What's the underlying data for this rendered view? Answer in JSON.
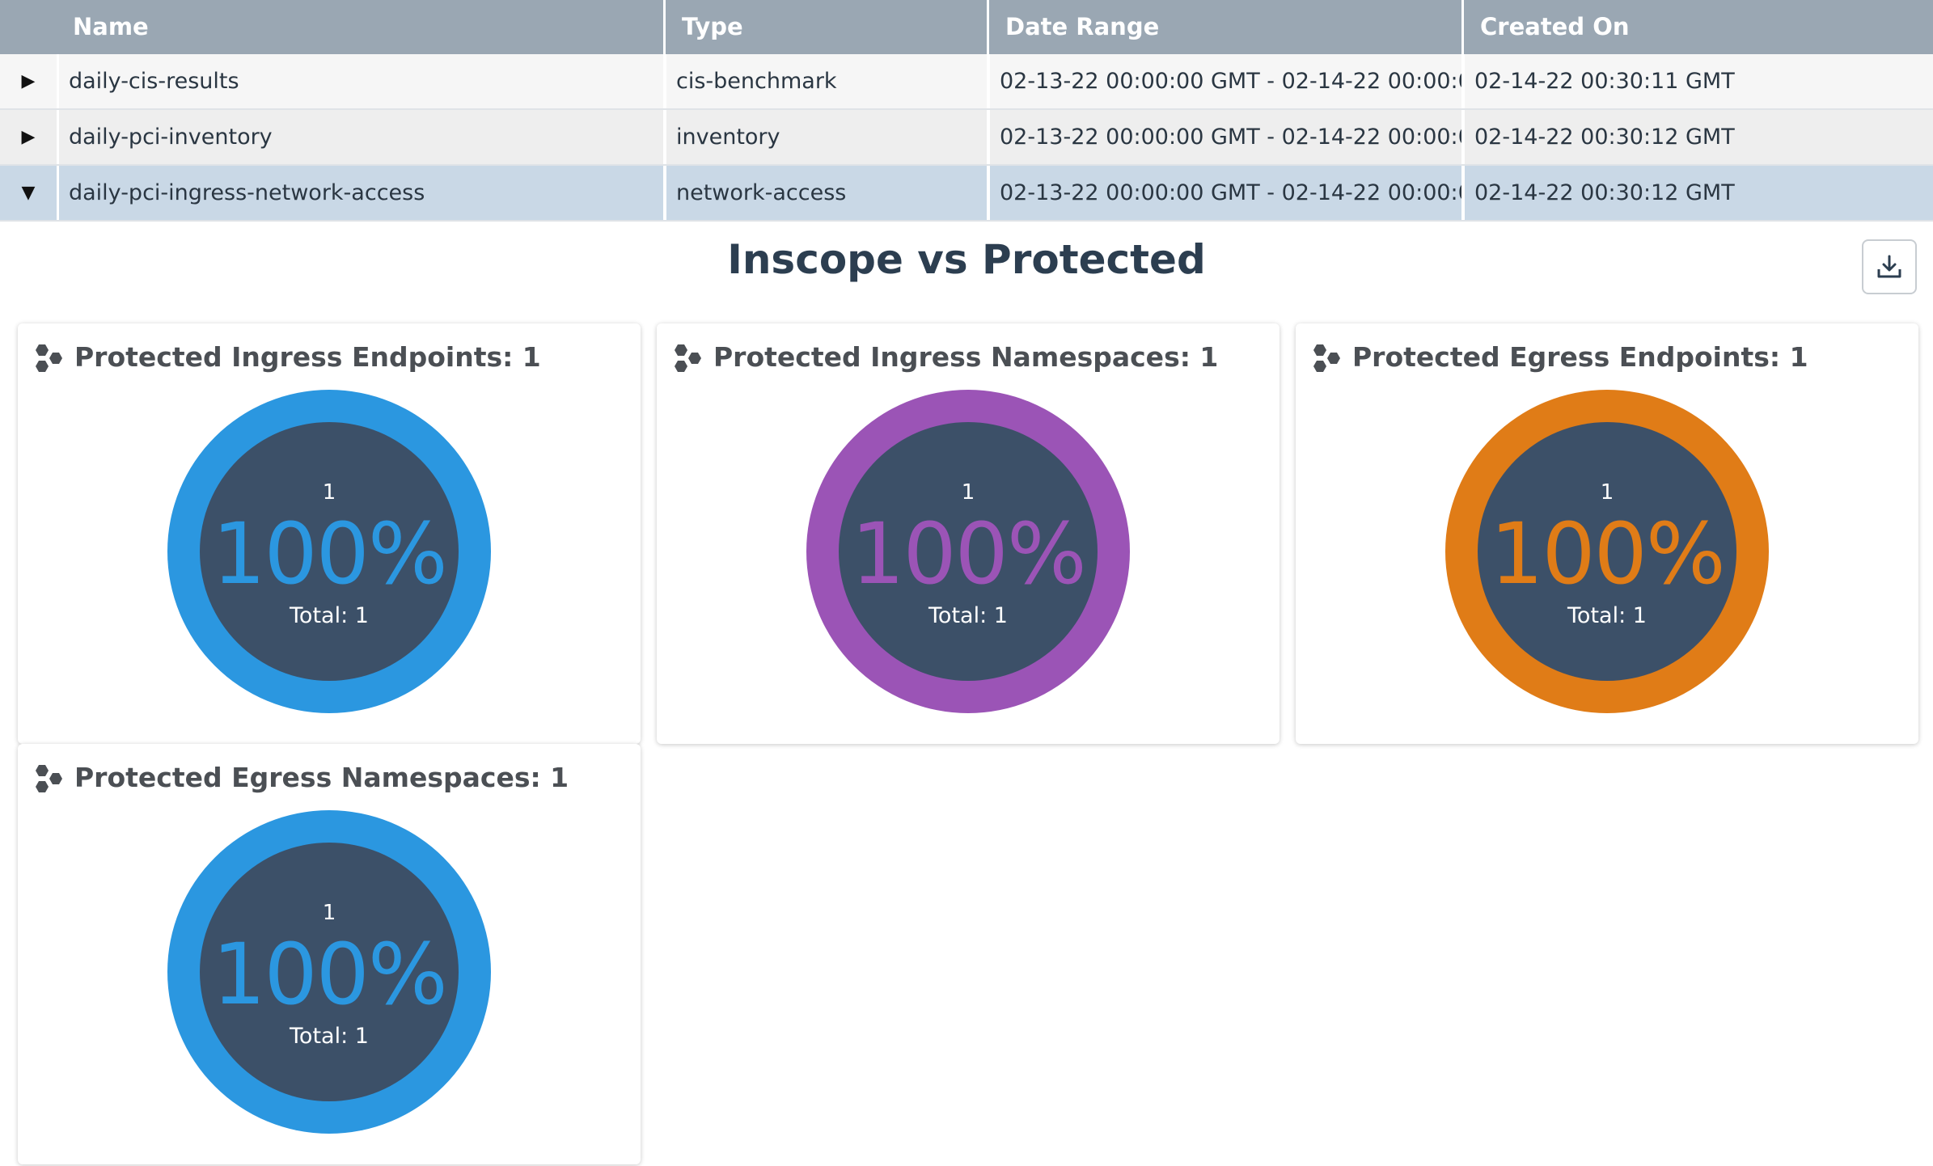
{
  "table": {
    "columns": [
      "Name",
      "Type",
      "Date Range",
      "Created On"
    ],
    "rows": [
      {
        "caret": "▶",
        "name": "daily-cis-results",
        "type": "cis-benchmark",
        "date_range": "02-13-22 00:00:00 GMT - 02-14-22 00:00:0...",
        "created_on": "02-14-22 00:30:11 GMT",
        "expanded": false
      },
      {
        "caret": "▶",
        "name": "daily-pci-inventory",
        "type": "inventory",
        "date_range": "02-13-22 00:00:00 GMT - 02-14-22 00:00:0...",
        "created_on": "02-14-22 00:30:12 GMT",
        "expanded": false
      },
      {
        "caret": "▼",
        "name": "daily-pci-ingress-network-access",
        "type": "network-access",
        "date_range": "02-13-22 00:00:00 GMT - 02-14-22 00:00:0...",
        "created_on": "02-14-22 00:30:12 GMT",
        "expanded": true
      }
    ]
  },
  "section": {
    "title": "Inscope vs Protected",
    "download_icon": "download-icon"
  },
  "cards": [
    {
      "title": "Protected Ingress Endpoints: 1",
      "count": "1",
      "percent": "100%",
      "total": "Total: 1",
      "color": "#2b97e0",
      "icon": "hexagon-cluster-icon"
    },
    {
      "title": "Protected Ingress Namespaces: 1",
      "count": "1",
      "percent": "100%",
      "total": "Total: 1",
      "color": "#9b54b6",
      "icon": "hexagon-cluster-icon"
    },
    {
      "title": "Protected Egress Endpoints: 1",
      "count": "1",
      "percent": "100%",
      "total": "Total: 1",
      "color": "#e07c17",
      "icon": "hexagon-cluster-icon"
    },
    {
      "title": "Protected Egress Namespaces: 1",
      "count": "1",
      "percent": "100%",
      "total": "Total: 1",
      "color": "#2b97e0",
      "icon": "hexagon-cluster-icon"
    }
  ]
}
